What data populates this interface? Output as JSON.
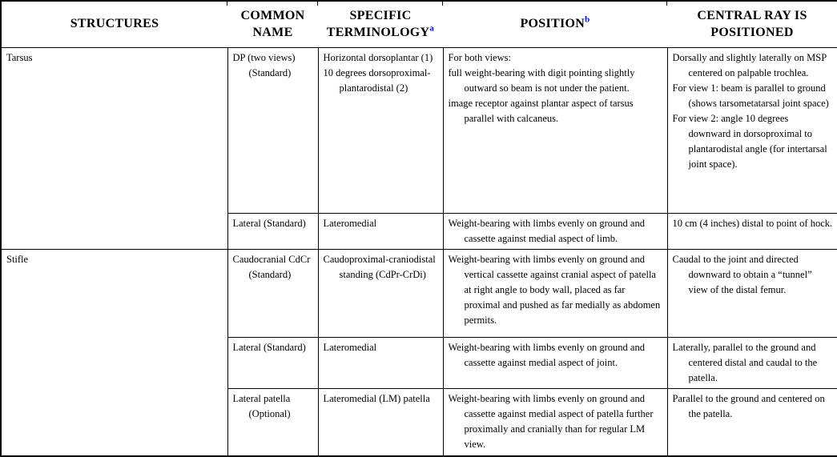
{
  "table": {
    "columns": [
      {
        "label": "STRUCTURES",
        "sup": ""
      },
      {
        "label": "COMMON NAME",
        "sup": ""
      },
      {
        "label": "SPECIFIC TERMINOLOGY",
        "sup": "a"
      },
      {
        "label": "POSITION",
        "sup": "b"
      },
      {
        "label": "CENTRAL RAY IS POSITIONED",
        "sup": ""
      }
    ],
    "body": {
      "r1": {
        "structure": [
          "Tarsus"
        ],
        "common": [
          "DP (two views) (Standard)"
        ],
        "terminology": [
          "Horizontal dorsoplantar (1)",
          "10 degrees dorsoproximal-plantarodistal (2)"
        ],
        "position": [
          "For both views:",
          "full weight-bearing with digit pointing slightly outward so beam is not under the patient.",
          "image receptor against plantar aspect of tarsus parallel with calcaneus."
        ],
        "central_ray": [
          "Dorsally and slightly laterally on MSP centered on palpable trochlea.",
          "For view 1: beam is parallel to ground (shows tarsometatarsal joint space)",
          "For view 2: angle 10 degrees downward in dorsoproximal to plantarodistal angle (for intertarsal joint space)."
        ]
      },
      "r2": {
        "common": [
          "Lateral (Standard)"
        ],
        "terminology": [
          "Lateromedial"
        ],
        "position": [
          "Weight-bearing with limbs evenly on ground and cassette against medial aspect of limb."
        ],
        "central_ray": [
          "10 cm (4 inches) distal to point of hock."
        ]
      },
      "r3": {
        "structure": [
          "Stifle"
        ],
        "common": [
          "Caudocranial CdCr (Standard)"
        ],
        "terminology": [
          "Caudoproximal-craniodistal standing (CdPr-CrDi)"
        ],
        "position": [
          "Weight-bearing with limbs evenly on ground and vertical cassette against cranial aspect of patella at right angle to body wall, placed as far proximal and pushed as far medially as abdomen permits."
        ],
        "central_ray": [
          "Caudal to the joint and directed downward to obtain a “tunnel” view of the distal femur."
        ]
      },
      "r4": {
        "common": [
          "Lateral (Standard)"
        ],
        "terminology": [
          "Lateromedial"
        ],
        "position": [
          "Weight-bearing with limbs evenly on ground and cassette against medial aspect of joint."
        ],
        "central_ray": [
          "Laterally, parallel to the ground and centered distal and caudal to the patella."
        ]
      },
      "r5": {
        "common": [
          "Lateral patella (Optional)"
        ],
        "terminology": [
          "Lateromedial (LM) patella"
        ],
        "position": [
          "Weight-bearing with limbs evenly on ground and cassette against medial aspect of patella further proximally and cranially than for regular LM view."
        ],
        "central_ray": [
          "Parallel to the ground and centered on the patella."
        ]
      }
    },
    "colors": {
      "text": "#000000",
      "superscript": "#0000e0",
      "border": "#000000",
      "background": "#ffffff"
    }
  }
}
